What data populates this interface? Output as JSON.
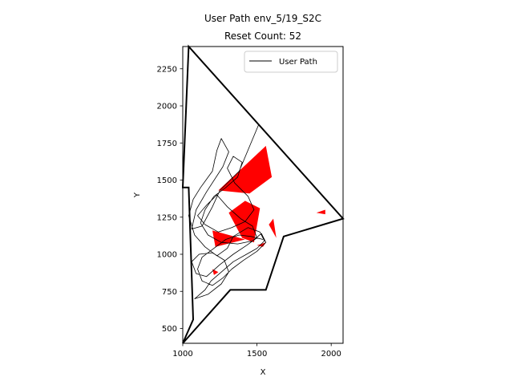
{
  "chart_data": {
    "type": "line",
    "title_line1": "User Path env_5/19_S2C",
    "title_line2": "Reset Count: 52",
    "xlabel": "X",
    "ylabel": "Y",
    "xlim": [
      1000,
      2080
    ],
    "ylim": [
      400,
      2400
    ],
    "xticks": [
      1000,
      1500,
      2000
    ],
    "yticks": [
      500,
      750,
      1000,
      1250,
      1500,
      1750,
      2000,
      2250
    ],
    "grid": false,
    "legend": {
      "placement": "top-right",
      "entries": [
        "User Path"
      ]
    },
    "colors": {
      "boundary": "#000000",
      "obstacles": "#ff0000",
      "path": "#000000"
    },
    "boundary": [
      [
        1000,
        400
      ],
      [
        1070,
        560
      ],
      [
        1040,
        1450
      ],
      [
        1000,
        1450
      ],
      [
        1040,
        2400
      ],
      [
        2080,
        1240
      ],
      [
        1680,
        1120
      ],
      [
        1560,
        760
      ],
      [
        1320,
        760
      ],
      [
        1000,
        400
      ]
    ],
    "obstacles": [
      [
        [
          1240,
          1430
        ],
        [
          1560,
          1730
        ],
        [
          1600,
          1520
        ],
        [
          1450,
          1410
        ]
      ],
      [
        [
          1310,
          1280
        ],
        [
          1420,
          1360
        ],
        [
          1520,
          1310
        ],
        [
          1480,
          1080
        ],
        [
          1400,
          1110
        ]
      ],
      [
        [
          1200,
          1160
        ],
        [
          1420,
          1100
        ],
        [
          1220,
          1050
        ]
      ],
      [
        [
          1500,
          1060
        ],
        [
          1560,
          1080
        ],
        [
          1540,
          1050
        ]
      ],
      [
        [
          1580,
          1200
        ],
        [
          1610,
          1240
        ],
        [
          1630,
          1110
        ]
      ],
      [
        [
          1900,
          1280
        ],
        [
          1960,
          1300
        ],
        [
          1960,
          1270
        ]
      ],
      [
        [
          1200,
          900
        ],
        [
          1240,
          880
        ],
        [
          1210,
          860
        ]
      ]
    ],
    "series": [
      {
        "name": "User Path",
        "points": [
          [
            1510,
            1870
          ],
          [
            1380,
            1560
          ],
          [
            1250,
            1430
          ],
          [
            1200,
            1320
          ],
          [
            1130,
            1190
          ],
          [
            1060,
            1170
          ],
          [
            1090,
            1300
          ],
          [
            1160,
            1420
          ],
          [
            1270,
            1590
          ],
          [
            1310,
            1690
          ],
          [
            1260,
            1780
          ],
          [
            1230,
            1700
          ],
          [
            1200,
            1560
          ],
          [
            1120,
            1450
          ],
          [
            1070,
            1370
          ],
          [
            1040,
            1260
          ],
          [
            1080,
            1130
          ],
          [
            1150,
            1050
          ],
          [
            1230,
            990
          ],
          [
            1300,
            1040
          ],
          [
            1340,
            1120
          ],
          [
            1440,
            1180
          ],
          [
            1520,
            1150
          ],
          [
            1550,
            1090
          ],
          [
            1500,
            1040
          ],
          [
            1430,
            1000
          ],
          [
            1340,
            950
          ],
          [
            1260,
            880
          ],
          [
            1190,
            820
          ],
          [
            1150,
            760
          ],
          [
            1080,
            700
          ],
          [
            1170,
            730
          ],
          [
            1260,
            800
          ],
          [
            1310,
            880
          ],
          [
            1280,
            960
          ],
          [
            1200,
            1010
          ],
          [
            1110,
            1000
          ],
          [
            1060,
            950
          ],
          [
            1090,
            870
          ],
          [
            1160,
            850
          ],
          [
            1250,
            930
          ],
          [
            1340,
            1000
          ],
          [
            1430,
            1060
          ],
          [
            1500,
            1110
          ],
          [
            1470,
            1190
          ],
          [
            1390,
            1240
          ],
          [
            1300,
            1320
          ],
          [
            1230,
            1400
          ],
          [
            1160,
            1330
          ],
          [
            1100,
            1260
          ],
          [
            1150,
            1200
          ],
          [
            1240,
            1150
          ],
          [
            1330,
            1180
          ],
          [
            1420,
            1220
          ],
          [
            1480,
            1300
          ],
          [
            1440,
            1390
          ],
          [
            1350,
            1480
          ],
          [
            1300,
            1580
          ],
          [
            1340,
            1660
          ],
          [
            1400,
            1620
          ],
          [
            1370,
            1520
          ],
          [
            1290,
            1450
          ],
          [
            1210,
            1390
          ],
          [
            1150,
            1300
          ],
          [
            1120,
            1210
          ],
          [
            1170,
            1130
          ],
          [
            1260,
            1080
          ],
          [
            1370,
            1070
          ],
          [
            1470,
            1090
          ],
          [
            1530,
            1140
          ],
          [
            1560,
            1080
          ],
          [
            1500,
            1020
          ],
          [
            1410,
            960
          ],
          [
            1330,
            900
          ],
          [
            1270,
            840
          ],
          [
            1200,
            790
          ],
          [
            1130,
            820
          ],
          [
            1100,
            900
          ],
          [
            1130,
            980
          ],
          [
            1210,
            1040
          ],
          [
            1290,
            1100
          ],
          [
            1380,
            1130
          ],
          [
            1460,
            1120
          ],
          [
            1540,
            1100
          ]
        ]
      }
    ]
  }
}
